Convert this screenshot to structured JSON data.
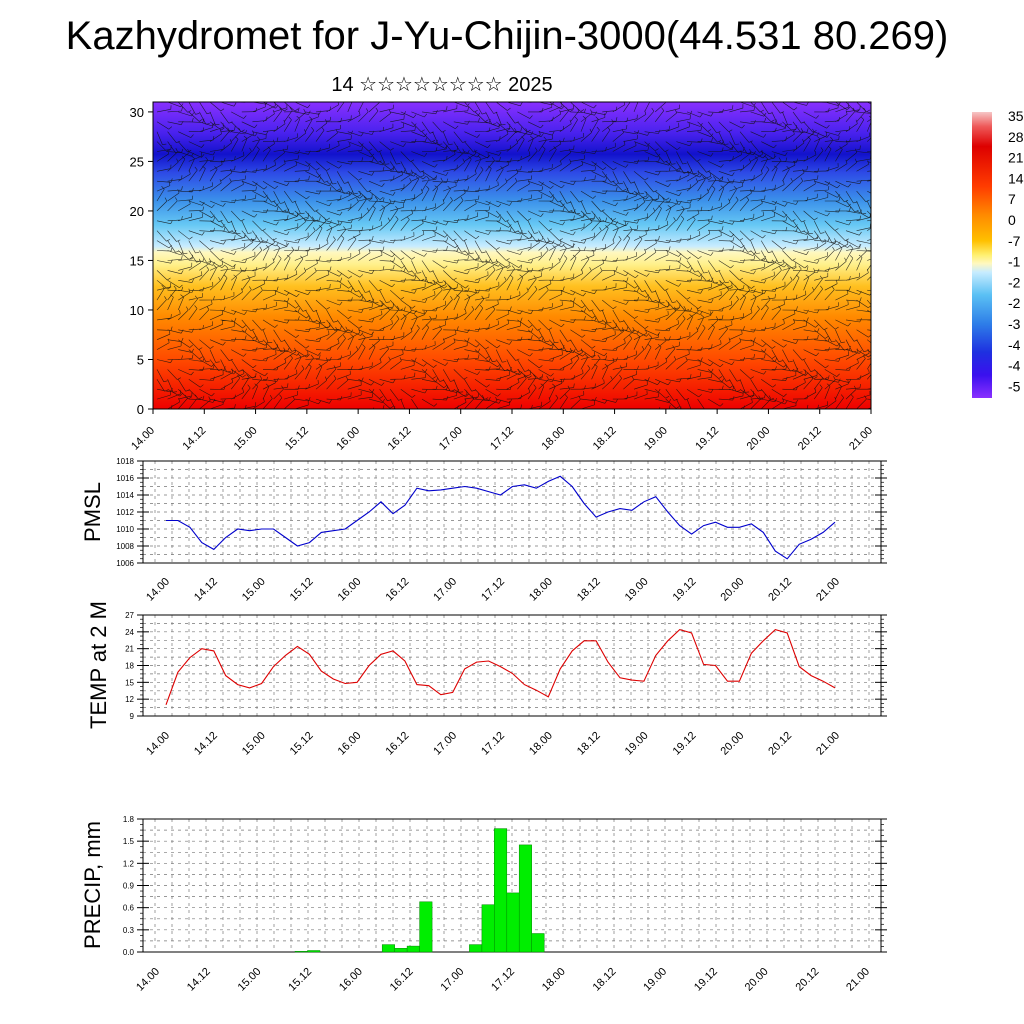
{
  "header": {
    "title": "Kazhydromet for J-Yu-Chijin-3000(44.531 80.269)",
    "subtitle": "14 ☆☆☆☆☆☆☆☆ 2025"
  },
  "colors": {
    "pmsl_line": "#0000cc",
    "temp_line": "#dd0000",
    "precip_bar": "#00ee00",
    "precip_edge": "#008800"
  },
  "chart_data": [
    {
      "id": "vertical_section",
      "type": "heatmap",
      "x_tick_labels": [
        "14.00",
        "14.12",
        "15.00",
        "15.12",
        "16.00",
        "16.12",
        "17.00",
        "17.12",
        "18.00",
        "18.12",
        "19.00",
        "19.12",
        "20.00",
        "20.12",
        "21.00"
      ],
      "y_ticks": [
        0,
        5,
        10,
        15,
        20,
        25,
        30
      ],
      "ylim": [
        0,
        31
      ],
      "colorbar_labels": [
        "35",
        "28",
        "21",
        "14",
        "7",
        "0",
        "-7",
        "-1",
        "-2",
        "-2",
        "-3",
        "-4",
        "-4",
        "-5"
      ],
      "overlay": "wind barbs"
    },
    {
      "id": "pmsl",
      "type": "line",
      "ylabel": "PMSL",
      "y_ticks": [
        1006,
        1008,
        1010,
        1012,
        1014,
        1016,
        1018
      ],
      "ylim": [
        1006,
        1018
      ],
      "x_tick_labels": [
        "14.00",
        "14.12",
        "15.00",
        "15.12",
        "16.00",
        "16.12",
        "17.00",
        "17.12",
        "18.00",
        "18.12",
        "19.00",
        "19.12",
        "20.00",
        "20.12",
        "21.00"
      ],
      "values": [
        1011.0,
        1011.0,
        1010.2,
        1008.4,
        1007.6,
        1009.0,
        1010.0,
        1009.8,
        1010.0,
        1010.0,
        1009.0,
        1008.0,
        1008.4,
        1009.6,
        1009.8,
        1010.0,
        1011.0,
        1012.0,
        1013.2,
        1011.8,
        1012.8,
        1014.8,
        1014.5,
        1014.6,
        1014.8,
        1015.0,
        1014.8,
        1014.4,
        1014.0,
        1015.0,
        1015.2,
        1014.8,
        1015.6,
        1016.2,
        1015.0,
        1013.0,
        1011.4,
        1012.0,
        1012.4,
        1012.2,
        1013.2,
        1013.8,
        1012.0,
        1010.4,
        1009.4,
        1010.4,
        1010.8,
        1010.2,
        1010.2,
        1010.6,
        1009.6,
        1007.4,
        1006.5,
        1008.2,
        1008.8,
        1009.6,
        1010.8
      ]
    },
    {
      "id": "t2m",
      "type": "line",
      "ylabel": "TEMP at 2 M",
      "y_ticks": [
        9,
        12,
        15,
        18,
        21,
        24,
        27
      ],
      "ylim": [
        9,
        27
      ],
      "x_tick_labels": [
        "14.00",
        "14.12",
        "15.00",
        "15.12",
        "16.00",
        "16.12",
        "17.00",
        "17.12",
        "18.00",
        "18.12",
        "19.00",
        "19.12",
        "20.00",
        "20.12",
        "21.00"
      ],
      "values": [
        11.0,
        16.8,
        19.4,
        21.0,
        20.6,
        16.2,
        14.6,
        14.0,
        14.8,
        17.8,
        19.8,
        21.4,
        20.0,
        17.0,
        15.6,
        14.8,
        15.0,
        18.0,
        20.0,
        20.6,
        18.8,
        14.6,
        14.4,
        12.8,
        13.2,
        17.4,
        18.6,
        18.8,
        17.8,
        16.6,
        14.6,
        13.6,
        12.4,
        17.4,
        20.6,
        22.4,
        22.4,
        18.6,
        15.8,
        15.4,
        15.2,
        19.8,
        22.4,
        24.4,
        23.8,
        18.2,
        18.0,
        15.2,
        15.2,
        20.2,
        22.4,
        24.4,
        23.8,
        17.8,
        16.2,
        15.2,
        14.0
      ]
    },
    {
      "id": "precip",
      "type": "bar",
      "ylabel": "PRECIP, mm",
      "y_ticks": [
        0.0,
        0.3,
        0.6,
        0.9,
        1.2,
        1.5,
        1.8
      ],
      "y_tick_labels": [
        "0.0",
        "0.3",
        "0.6",
        "0.9",
        "1.2",
        "1.5",
        "1.8"
      ],
      "ylim": [
        0,
        1.8
      ],
      "x_tick_labels": [
        "14.00",
        "14.12",
        "15.00",
        "15.12",
        "16.00",
        "16.12",
        "17.00",
        "17.12",
        "18.00",
        "18.12",
        "19.00",
        "19.12",
        "20.00",
        "20.12",
        "21.00"
      ],
      "values": [
        0,
        0,
        0,
        0,
        0,
        0,
        0,
        0,
        0,
        0,
        0,
        0.01,
        0.02,
        0,
        0,
        0,
        0,
        0,
        0.1,
        0.05,
        0.08,
        0.68,
        0,
        0,
        0,
        0.1,
        0.64,
        1.67,
        0.8,
        1.45,
        0.25,
        0,
        0,
        0,
        0,
        0,
        0,
        0,
        0,
        0,
        0,
        0,
        0,
        0,
        0,
        0,
        0,
        0,
        0,
        0,
        0,
        0,
        0,
        0,
        0,
        0,
        0
      ]
    }
  ]
}
